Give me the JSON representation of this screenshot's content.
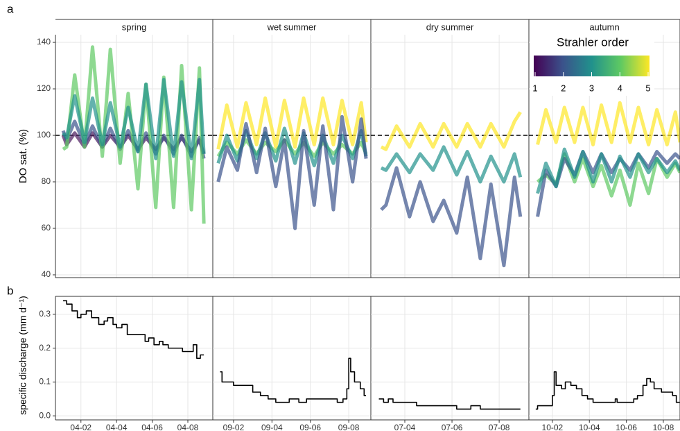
{
  "chart_data": [
    {
      "type": "line",
      "label": "a",
      "ylabel": "DO sat. (%)",
      "ylim": [
        38.8,
        143.3
      ],
      "yticks": [
        40,
        60,
        80,
        100,
        120,
        140
      ],
      "hline": 100,
      "colorbar": {
        "title": "Strahler order",
        "lim": [
          1,
          5
        ],
        "ticks": [
          1,
          2,
          3,
          4,
          5
        ],
        "colors": [
          "#440154",
          "#3b528b",
          "#21918c",
          "#5ec962",
          "#fde725"
        ]
      },
      "facets": [
        {
          "title": "spring",
          "xlim": [
            0.57,
            9.4
          ],
          "xticks": [
            {
              "value": 2,
              "label": "04-02"
            },
            {
              "value": 4,
              "label": "04-04"
            },
            {
              "value": 6,
              "label": "04-06"
            },
            {
              "value": 8,
              "label": "04-08"
            }
          ],
          "series": [
            {
              "color": "#4a1a5e",
              "x": [
                1.0,
                1.2,
                1.65,
                2.2,
                2.65,
                3.2,
                3.65,
                4.2,
                4.65,
                5.2,
                5.65,
                6.2,
                6.65,
                7.2,
                7.65,
                8.2,
                8.65,
                8.9
              ],
              "values": [
                100,
                96,
                101,
                95,
                101,
                95,
                100,
                95,
                100,
                94,
                99,
                94,
                99,
                94,
                99,
                93,
                98,
                92
              ]
            },
            {
              "color": "#3b528b",
              "x": [
                1.0,
                1.2,
                1.65,
                2.2,
                2.65,
                3.2,
                3.65,
                4.2,
                4.65,
                5.2,
                5.65,
                6.2,
                6.65,
                7.2,
                7.65,
                8.2,
                8.65,
                8.9
              ],
              "values": [
                102,
                98,
                106,
                96,
                104,
                95,
                103,
                94,
                102,
                93,
                101,
                92,
                100,
                92,
                100,
                91,
                99,
                90
              ]
            },
            {
              "color": "#5ec962",
              "x": [
                1.0,
                1.2,
                1.65,
                2.2,
                2.65,
                3.2,
                3.65,
                4.2,
                4.65,
                5.2,
                5.65,
                6.2,
                6.65,
                7.2,
                7.65,
                8.2,
                8.65,
                8.9
              ],
              "values": [
                94,
                95,
                126,
                95,
                138,
                91,
                137,
                88,
                118,
                77,
                122,
                69,
                125,
                69,
                130,
                68,
                129,
                62
              ]
            },
            {
              "color": "#21918c",
              "x": [
                1.0,
                1.2,
                1.65,
                2.2,
                2.65,
                3.2,
                3.65,
                4.2,
                4.65,
                5.2,
                5.65,
                6.2,
                6.65,
                7.2,
                7.65,
                8.2,
                8.65,
                8.9
              ],
              "values": [
                101,
                99,
                117,
                97,
                116,
                96,
                114,
                95,
                112,
                93,
                122,
                90,
                124,
                91,
                123,
                90,
                124,
                92
              ]
            }
          ]
        },
        {
          "title": "wet summer",
          "xlim": [
            0.92,
            9.15
          ],
          "xticks": [
            {
              "value": 2,
              "label": "09-02"
            },
            {
              "value": 4,
              "label": "09-04"
            },
            {
              "value": 6,
              "label": "09-06"
            },
            {
              "value": 8,
              "label": "09-08"
            }
          ],
          "series": [
            {
              "color": "#fde725",
              "x": [
                1.2,
                1.65,
                2.2,
                2.65,
                3.2,
                3.65,
                4.2,
                4.65,
                5.2,
                5.65,
                6.2,
                6.65,
                7.2,
                7.65,
                8.2,
                8.65,
                8.9
              ],
              "values": [
                94,
                113,
                95,
                114,
                96,
                116,
                95,
                115,
                95,
                116,
                96,
                116,
                96,
                115,
                96,
                114,
                97
              ]
            },
            {
              "color": "#5ec962",
              "x": [
                1.2,
                1.65,
                2.2,
                2.65,
                3.2,
                3.65,
                4.2,
                4.65,
                5.2,
                5.65,
                6.2,
                6.65,
                7.2,
                7.65,
                8.2,
                8.65,
                8.9
              ],
              "values": [
                91,
                97,
                92,
                98,
                92,
                97,
                93,
                98,
                92,
                97,
                91,
                97,
                92,
                96,
                92,
                97,
                92
              ]
            },
            {
              "color": "#21918c",
              "x": [
                1.2,
                1.65,
                2.2,
                2.65,
                3.2,
                3.65,
                4.2,
                4.65,
                5.2,
                5.65,
                6.2,
                6.65,
                7.2,
                7.65,
                8.2,
                8.65,
                8.9
              ],
              "values": [
                88,
                100,
                89,
                102,
                90,
                101,
                89,
                103,
                88,
                101,
                87,
                100,
                88,
                100,
                90,
                102,
                91
              ]
            },
            {
              "color": "#3b528b",
              "x": [
                1.2,
                1.65,
                2.2,
                2.65,
                3.2,
                3.65,
                4.2,
                4.65,
                5.2,
                5.65,
                6.2,
                6.65,
                7.2,
                7.65,
                8.2,
                8.65,
                8.9
              ],
              "values": [
                80,
                95,
                85,
                105,
                84,
                103,
                78,
                98,
                60,
                102,
                70,
                104,
                68,
                108,
                80,
                107,
                90
              ]
            }
          ]
        },
        {
          "title": "dry summer",
          "xlim": [
            2.56,
            9.26
          ],
          "xticks": [
            {
              "value": 4,
              "label": "07-04"
            },
            {
              "value": 6,
              "label": "07-06"
            },
            {
              "value": 8,
              "label": "07-08"
            }
          ],
          "series": [
            {
              "color": "#fde725",
              "x": [
                3.0,
                3.2,
                3.65,
                4.2,
                4.65,
                5.2,
                5.65,
                6.2,
                6.65,
                7.2,
                7.65,
                8.2,
                8.65,
                8.9
              ],
              "values": [
                95,
                94,
                104,
                95,
                105,
                95,
                105,
                95,
                105,
                95,
                105,
                95,
                106,
                110
              ]
            },
            {
              "color": "#21918c",
              "x": [
                3.0,
                3.2,
                3.65,
                4.2,
                4.65,
                5.2,
                5.65,
                6.2,
                6.65,
                7.2,
                7.65,
                8.2,
                8.65,
                8.9
              ],
              "values": [
                86,
                85,
                92,
                84,
                92,
                85,
                95,
                83,
                93,
                80,
                91,
                80,
                92,
                82
              ]
            },
            {
              "color": "#3b528b",
              "x": [
                3.0,
                3.2,
                3.65,
                4.2,
                4.65,
                5.2,
                5.65,
                6.2,
                6.65,
                7.2,
                7.65,
                8.2,
                8.65,
                8.9
              ],
              "values": [
                68,
                70,
                86,
                65,
                80,
                63,
                72,
                58,
                82,
                47,
                79,
                44,
                82,
                65
              ]
            }
          ]
        },
        {
          "title": "autumn",
          "xlim": [
            0.73,
            8.9
          ],
          "xticks": [
            {
              "value": 2,
              "label": "10-02"
            },
            {
              "value": 4,
              "label": "10-04"
            },
            {
              "value": 6,
              "label": "10-06"
            },
            {
              "value": 8,
              "label": "10-08"
            }
          ],
          "series": [
            {
              "color": "#fde725",
              "x": [
                1.2,
                1.65,
                2.2,
                2.65,
                3.2,
                3.65,
                4.2,
                4.65,
                5.2,
                5.65,
                6.2,
                6.65,
                7.2,
                7.65,
                8.2,
                8.65,
                8.9
              ],
              "values": [
                96,
                111,
                97,
                112,
                97,
                112,
                96,
                113,
                97,
                114,
                97,
                112,
                96,
                111,
                96,
                110,
                97
              ]
            },
            {
              "color": "#5ec962",
              "x": [
                1.2,
                1.65,
                2.2,
                2.65,
                3.2,
                3.65,
                4.2,
                4.65,
                5.2,
                5.65,
                6.2,
                6.65,
                7.2,
                7.65,
                8.2,
                8.65,
                8.9
              ],
              "values": [
                80,
                83,
                79,
                92,
                80,
                90,
                78,
                87,
                74,
                85,
                70,
                88,
                75,
                90,
                82,
                88,
                84
              ]
            },
            {
              "color": "#3b528b",
              "x": [
                1.2,
                1.65,
                2.2,
                2.65,
                3.2,
                3.65,
                4.2,
                4.65,
                5.2,
                5.65,
                6.2,
                6.65,
                7.2,
                7.65,
                8.2,
                8.65,
                8.9
              ],
              "values": [
                65,
                85,
                78,
                90,
                83,
                93,
                84,
                92,
                84,
                90,
                85,
                92,
                86,
                93,
                88,
                92,
                90
              ]
            },
            {
              "color": "#21918c",
              "x": [
                1.2,
                1.65,
                2.2,
                2.65,
                3.2,
                3.65,
                4.2,
                4.65,
                5.2,
                5.65,
                6.2,
                6.65,
                7.2,
                7.65,
                8.2,
                8.65,
                8.9
              ],
              "values": [
                75,
                88,
                78,
                94,
                82,
                93,
                80,
                92,
                80,
                91,
                82,
                92,
                84,
                90,
                84,
                89,
                85
              ]
            }
          ]
        }
      ]
    },
    {
      "type": "step",
      "label": "b",
      "ylabel": "specific discharge (mm d⁻¹)",
      "ylim": [
        -0.012,
        0.353
      ],
      "yticks": [
        {
          "value": 0,
          "label": "0.0"
        },
        0.1,
        0.2,
        0.3
      ],
      "facets": [
        {
          "series": [
            {
              "color": "#000000",
              "x": [
                1.0,
                1.2,
                1.5,
                1.8,
                2.0,
                2.3,
                2.6,
                3.0,
                3.3,
                3.5,
                3.8,
                4.0,
                4.3,
                4.6,
                5.2,
                5.6,
                5.8,
                6.1,
                6.4,
                6.6,
                6.9,
                7.4,
                7.7,
                8.1,
                8.3,
                8.5,
                8.7,
                8.9
              ],
              "values": [
                0.34,
                0.33,
                0.31,
                0.29,
                0.3,
                0.31,
                0.29,
                0.27,
                0.28,
                0.29,
                0.27,
                0.26,
                0.27,
                0.24,
                0.24,
                0.22,
                0.23,
                0.21,
                0.22,
                0.21,
                0.2,
                0.2,
                0.19,
                0.19,
                0.21,
                0.17,
                0.18,
                0.18
              ]
            }
          ]
        },
        {
          "series": [
            {
              "color": "#000000",
              "x": [
                1.3,
                1.4,
                2.0,
                3.0,
                3.4,
                3.8,
                4.2,
                4.9,
                5.4,
                5.8,
                6.4,
                7.4,
                7.7,
                7.9,
                8.0,
                8.1,
                8.3,
                8.6,
                8.8,
                8.9
              ],
              "values": [
                0.13,
                0.1,
                0.09,
                0.07,
                0.06,
                0.05,
                0.04,
                0.05,
                0.04,
                0.05,
                0.05,
                0.04,
                0.05,
                0.08,
                0.17,
                0.13,
                0.1,
                0.08,
                0.06,
                0.06
              ]
            }
          ]
        },
        {
          "series": [
            {
              "color": "#000000",
              "x": [
                2.9,
                3.1,
                3.3,
                3.5,
                4.0,
                4.5,
                5.6,
                6.2,
                6.8,
                7.2,
                8.9
              ],
              "values": [
                0.05,
                0.04,
                0.05,
                0.04,
                0.04,
                0.03,
                0.03,
                0.02,
                0.03,
                0.02,
                0.02
              ]
            }
          ]
        },
        {
          "series": [
            {
              "color": "#000000",
              "x": [
                1.1,
                1.2,
                1.9,
                2.0,
                2.1,
                2.2,
                2.5,
                2.7,
                3.0,
                3.3,
                3.6,
                3.9,
                4.2,
                5.4,
                5.5,
                6.4,
                6.6,
                6.9,
                7.1,
                7.3,
                7.5,
                7.9,
                8.5,
                8.7,
                8.9
              ],
              "values": [
                0.02,
                0.03,
                0.03,
                0.06,
                0.13,
                0.09,
                0.08,
                0.1,
                0.09,
                0.08,
                0.06,
                0.05,
                0.04,
                0.05,
                0.04,
                0.05,
                0.06,
                0.09,
                0.11,
                0.1,
                0.08,
                0.07,
                0.06,
                0.04,
                0.04
              ]
            }
          ]
        }
      ]
    }
  ]
}
